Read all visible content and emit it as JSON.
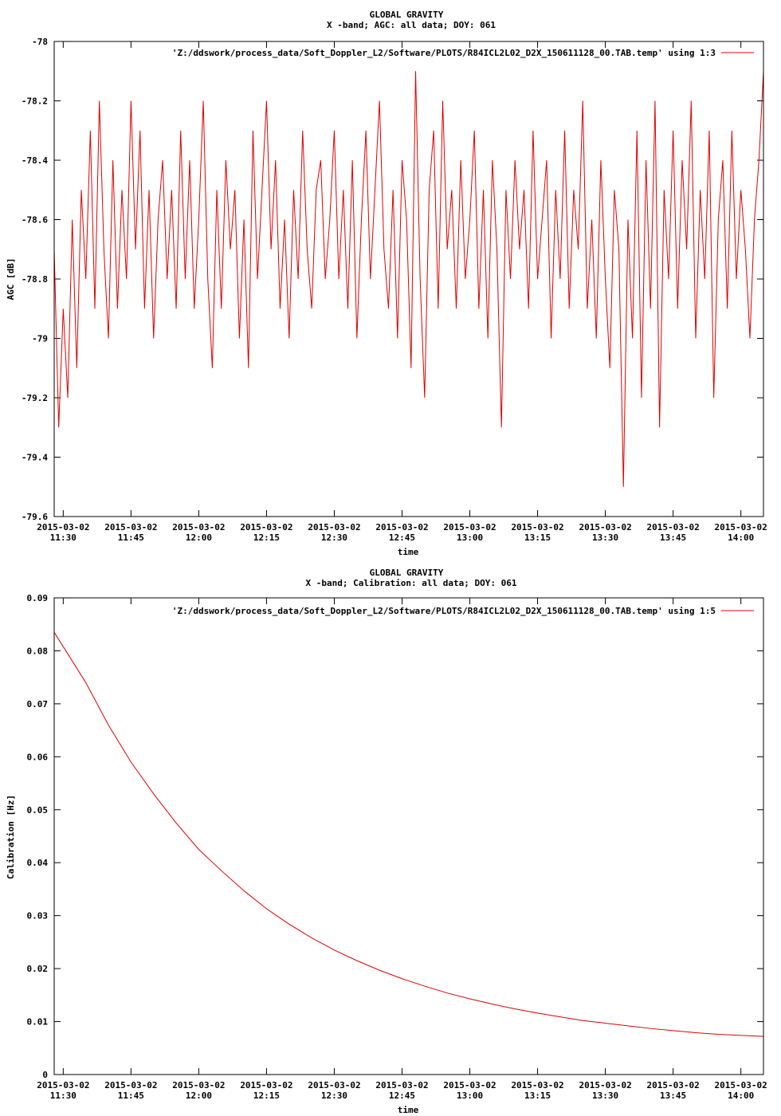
{
  "chart_data": [
    {
      "type": "line",
      "title": "GLOBAL GRAVITY",
      "subtitle": "X -band; AGC: all data; DOY: 061",
      "xlabel": "time",
      "ylabel": "AGC [dB]",
      "legend": "'Z:/ddswork/process_data/Soft_Doppler_L2/Software/PLOTS/R84ICL2L02_D2X_150611128_00.TAB.temp' using 1:3",
      "legend_position": "top-right",
      "line_color": "#e00000",
      "xlim": [
        "2015-03-02 11:28",
        "2015-03-02 14:05"
      ],
      "ylim": [
        -79.6,
        -78.0
      ],
      "x_ticks": [
        {
          "value": "2015-03-02 11:30",
          "date": "2015-03-02",
          "time": "11:30"
        },
        {
          "value": "2015-03-02 11:45",
          "date": "2015-03-02",
          "time": "11:45"
        },
        {
          "value": "2015-03-02 12:00",
          "date": "2015-03-02",
          "time": "12:00"
        },
        {
          "value": "2015-03-02 12:15",
          "date": "2015-03-02",
          "time": "12:15"
        },
        {
          "value": "2015-03-02 12:30",
          "date": "2015-03-02",
          "time": "12:30"
        },
        {
          "value": "2015-03-02 12:45",
          "date": "2015-03-02",
          "time": "12:45"
        },
        {
          "value": "2015-03-02 13:00",
          "date": "2015-03-02",
          "time": "13:00"
        },
        {
          "value": "2015-03-02 13:15",
          "date": "2015-03-02",
          "time": "13:15"
        },
        {
          "value": "2015-03-02 13:30",
          "date": "2015-03-02",
          "time": "13:30"
        },
        {
          "value": "2015-03-02 13:45",
          "date": "2015-03-02",
          "time": "13:45"
        },
        {
          "value": "2015-03-02 14:00",
          "date": "2015-03-02",
          "time": "14:00"
        }
      ],
      "y_ticks": [
        -78,
        -78.2,
        -78.4,
        -78.6,
        -78.8,
        -79,
        -79.2,
        -79.4,
        -79.6
      ],
      "series": [
        {
          "points": [
            [
              "2015-03-02 11:28",
              -78.7
            ],
            [
              "2015-03-02 11:29",
              -79.3
            ],
            [
              "2015-03-02 11:30",
              -78.9
            ],
            [
              "2015-03-02 11:31",
              -79.2
            ],
            [
              "2015-03-02 11:32",
              -78.6
            ],
            [
              "2015-03-02 11:33",
              -79.1
            ],
            [
              "2015-03-02 11:34",
              -78.5
            ],
            [
              "2015-03-02 11:35",
              -78.8
            ],
            [
              "2015-03-02 11:36",
              -78.3
            ],
            [
              "2015-03-02 11:37",
              -78.9
            ],
            [
              "2015-03-02 11:38",
              -78.2
            ],
            [
              "2015-03-02 11:39",
              -78.7
            ],
            [
              "2015-03-02 11:40",
              -79.0
            ],
            [
              "2015-03-02 11:41",
              -78.4
            ],
            [
              "2015-03-02 11:42",
              -78.9
            ],
            [
              "2015-03-02 11:43",
              -78.5
            ],
            [
              "2015-03-02 11:44",
              -78.8
            ],
            [
              "2015-03-02 11:45",
              -78.2
            ],
            [
              "2015-03-02 11:46",
              -78.7
            ],
            [
              "2015-03-02 11:47",
              -78.3
            ],
            [
              "2015-03-02 11:48",
              -78.9
            ],
            [
              "2015-03-02 11:49",
              -78.5
            ],
            [
              "2015-03-02 11:50",
              -79.0
            ],
            [
              "2015-03-02 11:51",
              -78.6
            ],
            [
              "2015-03-02 11:52",
              -78.4
            ],
            [
              "2015-03-02 11:53",
              -78.8
            ],
            [
              "2015-03-02 11:54",
              -78.5
            ],
            [
              "2015-03-02 11:55",
              -78.9
            ],
            [
              "2015-03-02 11:56",
              -78.3
            ],
            [
              "2015-03-02 11:57",
              -78.8
            ],
            [
              "2015-03-02 11:58",
              -78.4
            ],
            [
              "2015-03-02 11:59",
              -78.9
            ],
            [
              "2015-03-02 12:00",
              -78.6
            ],
            [
              "2015-03-02 12:01",
              -78.2
            ],
            [
              "2015-03-02 12:02",
              -78.8
            ],
            [
              "2015-03-02 12:03",
              -79.1
            ],
            [
              "2015-03-02 12:04",
              -78.5
            ],
            [
              "2015-03-02 12:05",
              -78.9
            ],
            [
              "2015-03-02 12:06",
              -78.4
            ],
            [
              "2015-03-02 12:07",
              -78.7
            ],
            [
              "2015-03-02 12:08",
              -78.5
            ],
            [
              "2015-03-02 12:09",
              -79.0
            ],
            [
              "2015-03-02 12:10",
              -78.6
            ],
            [
              "2015-03-02 12:11",
              -79.1
            ],
            [
              "2015-03-02 12:12",
              -78.3
            ],
            [
              "2015-03-02 12:13",
              -78.8
            ],
            [
              "2015-03-02 12:14",
              -78.5
            ],
            [
              "2015-03-02 12:15",
              -78.2
            ],
            [
              "2015-03-02 12:16",
              -78.7
            ],
            [
              "2015-03-02 12:17",
              -78.4
            ],
            [
              "2015-03-02 12:18",
              -78.9
            ],
            [
              "2015-03-02 12:19",
              -78.6
            ],
            [
              "2015-03-02 12:20",
              -79.0
            ],
            [
              "2015-03-02 12:21",
              -78.5
            ],
            [
              "2015-03-02 12:22",
              -78.8
            ],
            [
              "2015-03-02 12:23",
              -78.3
            ],
            [
              "2015-03-02 12:24",
              -78.7
            ],
            [
              "2015-03-02 12:25",
              -78.9
            ],
            [
              "2015-03-02 12:26",
              -78.5
            ],
            [
              "2015-03-02 12:27",
              -78.4
            ],
            [
              "2015-03-02 12:28",
              -78.8
            ],
            [
              "2015-03-02 12:29",
              -78.6
            ],
            [
              "2015-03-02 12:30",
              -78.3
            ],
            [
              "2015-03-02 12:31",
              -78.8
            ],
            [
              "2015-03-02 12:32",
              -78.5
            ],
            [
              "2015-03-02 12:33",
              -78.9
            ],
            [
              "2015-03-02 12:34",
              -78.4
            ],
            [
              "2015-03-02 12:35",
              -79.0
            ],
            [
              "2015-03-02 12:36",
              -78.6
            ],
            [
              "2015-03-02 12:37",
              -78.3
            ],
            [
              "2015-03-02 12:38",
              -78.8
            ],
            [
              "2015-03-02 12:39",
              -78.5
            ],
            [
              "2015-03-02 12:40",
              -78.2
            ],
            [
              "2015-03-02 12:41",
              -78.7
            ],
            [
              "2015-03-02 12:42",
              -78.9
            ],
            [
              "2015-03-02 12:43",
              -78.5
            ],
            [
              "2015-03-02 12:44",
              -79.0
            ],
            [
              "2015-03-02 12:45",
              -78.4
            ],
            [
              "2015-03-02 12:46",
              -78.6
            ],
            [
              "2015-03-02 12:47",
              -79.1
            ],
            [
              "2015-03-02 12:48",
              -78.1
            ],
            [
              "2015-03-02 12:49",
              -78.8
            ],
            [
              "2015-03-02 12:50",
              -79.2
            ],
            [
              "2015-03-02 12:51",
              -78.5
            ],
            [
              "2015-03-02 12:52",
              -78.3
            ],
            [
              "2015-03-02 12:53",
              -78.9
            ],
            [
              "2015-03-02 12:54",
              -78.2
            ],
            [
              "2015-03-02 12:55",
              -78.7
            ],
            [
              "2015-03-02 12:56",
              -78.5
            ],
            [
              "2015-03-02 12:57",
              -78.9
            ],
            [
              "2015-03-02 12:58",
              -78.4
            ],
            [
              "2015-03-02 12:59",
              -78.8
            ],
            [
              "2015-03-02 13:00",
              -78.6
            ],
            [
              "2015-03-02 13:01",
              -78.3
            ],
            [
              "2015-03-02 13:02",
              -78.9
            ],
            [
              "2015-03-02 13:03",
              -78.5
            ],
            [
              "2015-03-02 13:04",
              -79.0
            ],
            [
              "2015-03-02 13:05",
              -78.4
            ],
            [
              "2015-03-02 13:06",
              -78.7
            ],
            [
              "2015-03-02 13:07",
              -79.3
            ],
            [
              "2015-03-02 13:08",
              -78.5
            ],
            [
              "2015-03-02 13:09",
              -78.8
            ],
            [
              "2015-03-02 13:10",
              -78.4
            ],
            [
              "2015-03-02 13:11",
              -78.7
            ],
            [
              "2015-03-02 13:12",
              -78.5
            ],
            [
              "2015-03-02 13:13",
              -78.9
            ],
            [
              "2015-03-02 13:14",
              -78.3
            ],
            [
              "2015-03-02 13:15",
              -78.8
            ],
            [
              "2015-03-02 13:16",
              -78.6
            ],
            [
              "2015-03-02 13:17",
              -78.4
            ],
            [
              "2015-03-02 13:18",
              -79.0
            ],
            [
              "2015-03-02 13:19",
              -78.5
            ],
            [
              "2015-03-02 13:20",
              -78.8
            ],
            [
              "2015-03-02 13:21",
              -78.3
            ],
            [
              "2015-03-02 13:22",
              -78.9
            ],
            [
              "2015-03-02 13:23",
              -78.5
            ],
            [
              "2015-03-02 13:24",
              -78.7
            ],
            [
              "2015-03-02 13:25",
              -78.2
            ],
            [
              "2015-03-02 13:26",
              -78.9
            ],
            [
              "2015-03-02 13:27",
              -78.6
            ],
            [
              "2015-03-02 13:28",
              -79.0
            ],
            [
              "2015-03-02 13:29",
              -78.4
            ],
            [
              "2015-03-02 13:30",
              -78.8
            ],
            [
              "2015-03-02 13:31",
              -79.1
            ],
            [
              "2015-03-02 13:32",
              -78.5
            ],
            [
              "2015-03-02 13:33",
              -78.7
            ],
            [
              "2015-03-02 13:34",
              -79.5
            ],
            [
              "2015-03-02 13:35",
              -78.6
            ],
            [
              "2015-03-02 13:36",
              -79.0
            ],
            [
              "2015-03-02 13:37",
              -78.3
            ],
            [
              "2015-03-02 13:38",
              -79.2
            ],
            [
              "2015-03-02 13:39",
              -78.4
            ],
            [
              "2015-03-02 13:40",
              -78.9
            ],
            [
              "2015-03-02 13:41",
              -78.2
            ],
            [
              "2015-03-02 13:42",
              -79.3
            ],
            [
              "2015-03-02 13:43",
              -78.5
            ],
            [
              "2015-03-02 13:44",
              -78.8
            ],
            [
              "2015-03-02 13:45",
              -78.3
            ],
            [
              "2015-03-02 13:46",
              -78.9
            ],
            [
              "2015-03-02 13:47",
              -78.4
            ],
            [
              "2015-03-02 13:48",
              -78.7
            ],
            [
              "2015-03-02 13:49",
              -78.2
            ],
            [
              "2015-03-02 13:50",
              -79.0
            ],
            [
              "2015-03-02 13:51",
              -78.5
            ],
            [
              "2015-03-02 13:52",
              -78.8
            ],
            [
              "2015-03-02 13:53",
              -78.3
            ],
            [
              "2015-03-02 13:54",
              -79.2
            ],
            [
              "2015-03-02 13:55",
              -78.6
            ],
            [
              "2015-03-02 13:56",
              -78.4
            ],
            [
              "2015-03-02 13:57",
              -78.9
            ],
            [
              "2015-03-02 13:58",
              -78.3
            ],
            [
              "2015-03-02 13:59",
              -78.8
            ],
            [
              "2015-03-02 14:00",
              -78.5
            ],
            [
              "2015-03-02 14:01",
              -78.7
            ],
            [
              "2015-03-02 14:02",
              -79.0
            ],
            [
              "2015-03-02 14:03",
              -78.6
            ],
            [
              "2015-03-02 14:04",
              -78.4
            ],
            [
              "2015-03-02 14:05",
              -78.1
            ]
          ]
        }
      ]
    },
    {
      "type": "line",
      "title": "GLOBAL GRAVITY",
      "subtitle": "X -band; Calibration: all data; DOY: 061",
      "xlabel": "time",
      "ylabel": "Calibration [Hz]",
      "legend": "'Z:/ddswork/process_data/Soft_Doppler_L2/Software/PLOTS/R84ICL2L02_D2X_150611128_00.TAB.temp' using 1:5",
      "legend_position": "top-right",
      "line_color": "#e00000",
      "xlim": [
        "2015-03-02 11:28",
        "2015-03-02 14:05"
      ],
      "ylim": [
        0,
        0.09
      ],
      "x_ticks": [
        {
          "value": "2015-03-02 11:30",
          "date": "2015-03-02",
          "time": "11:30"
        },
        {
          "value": "2015-03-02 11:45",
          "date": "2015-03-02",
          "time": "11:45"
        },
        {
          "value": "2015-03-02 12:00",
          "date": "2015-03-02",
          "time": "12:00"
        },
        {
          "value": "2015-03-02 12:15",
          "date": "2015-03-02",
          "time": "12:15"
        },
        {
          "value": "2015-03-02 12:30",
          "date": "2015-03-02",
          "time": "12:30"
        },
        {
          "value": "2015-03-02 12:45",
          "date": "2015-03-02",
          "time": "12:45"
        },
        {
          "value": "2015-03-02 13:00",
          "date": "2015-03-02",
          "time": "13:00"
        },
        {
          "value": "2015-03-02 13:15",
          "date": "2015-03-02",
          "time": "13:15"
        },
        {
          "value": "2015-03-02 13:30",
          "date": "2015-03-02",
          "time": "13:30"
        },
        {
          "value": "2015-03-02 13:45",
          "date": "2015-03-02",
          "time": "13:45"
        },
        {
          "value": "2015-03-02 14:00",
          "date": "2015-03-02",
          "time": "14:00"
        }
      ],
      "y_ticks": [
        0,
        0.01,
        0.02,
        0.03,
        0.04,
        0.05,
        0.06,
        0.07,
        0.08,
        0.09
      ],
      "series": [
        {
          "points": [
            [
              "2015-03-02 11:28",
              0.0835
            ],
            [
              "2015-03-02 11:35",
              0.074
            ],
            [
              "2015-03-02 11:40",
              0.066
            ],
            [
              "2015-03-02 11:45",
              0.059
            ],
            [
              "2015-03-02 11:50",
              0.053
            ],
            [
              "2015-03-02 11:55",
              0.0475
            ],
            [
              "2015-03-02 12:00",
              0.0425
            ],
            [
              "2015-03-02 12:05",
              0.0385
            ],
            [
              "2015-03-02 12:10",
              0.0347
            ],
            [
              "2015-03-02 12:15",
              0.0313
            ],
            [
              "2015-03-02 12:20",
              0.0284
            ],
            [
              "2015-03-02 12:25",
              0.0258
            ],
            [
              "2015-03-02 12:30",
              0.0235
            ],
            [
              "2015-03-02 12:35",
              0.0215
            ],
            [
              "2015-03-02 12:40",
              0.0197
            ],
            [
              "2015-03-02 12:45",
              0.0181
            ],
            [
              "2015-03-02 12:50",
              0.0167
            ],
            [
              "2015-03-02 12:55",
              0.0154
            ],
            [
              "2015-03-02 13:00",
              0.0143
            ],
            [
              "2015-03-02 13:05",
              0.0133
            ],
            [
              "2015-03-02 13:10",
              0.0124
            ],
            [
              "2015-03-02 13:15",
              0.0116
            ],
            [
              "2015-03-02 13:20",
              0.0109
            ],
            [
              "2015-03-02 13:25",
              0.0102
            ],
            [
              "2015-03-02 13:30",
              0.0097
            ],
            [
              "2015-03-02 13:35",
              0.0092
            ],
            [
              "2015-03-02 13:40",
              0.0087
            ],
            [
              "2015-03-02 13:45",
              0.0083
            ],
            [
              "2015-03-02 13:50",
              0.0079
            ],
            [
              "2015-03-02 13:55",
              0.0076
            ],
            [
              "2015-03-02 14:00",
              0.0074
            ],
            [
              "2015-03-02 14:05",
              0.0072
            ]
          ]
        }
      ]
    }
  ]
}
